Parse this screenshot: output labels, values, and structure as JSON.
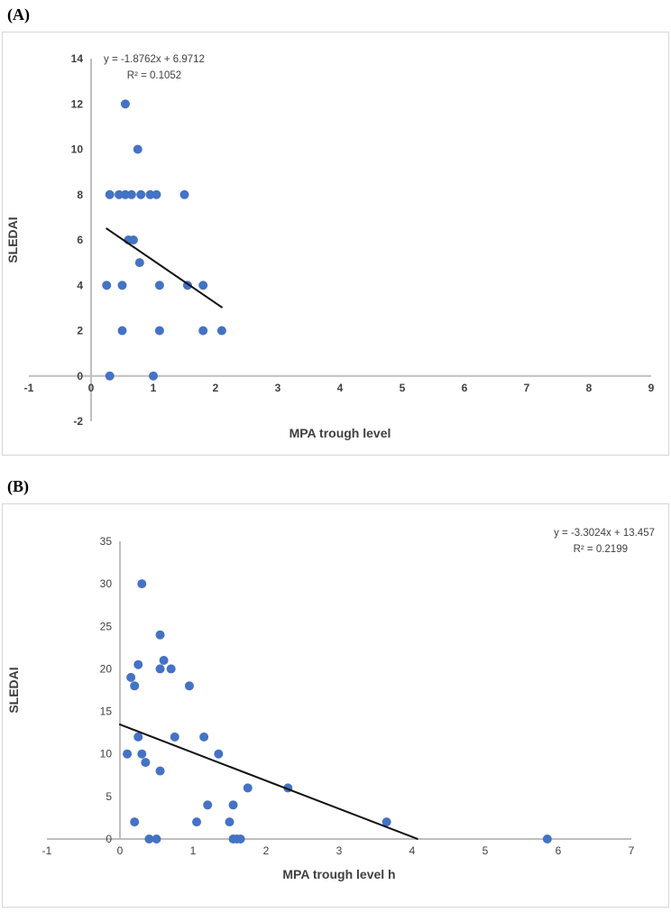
{
  "panels": [
    {
      "tag": "(A)"
    },
    {
      "tag": "(B)"
    }
  ],
  "chart_data": [
    {
      "type": "scatter",
      "equation": "y = -1.8762x + 6.9712",
      "r_squared": "R² = 0.1052",
      "xlabel": "MPA trough level",
      "ylabel": "SLEDAI",
      "xlim": [
        -1,
        9
      ],
      "ylim": [
        -2,
        14
      ],
      "xticks": [
        -1,
        0,
        1,
        2,
        3,
        4,
        5,
        6,
        7,
        8,
        9
      ],
      "yticks": [
        -2,
        0,
        2,
        4,
        6,
        8,
        10,
        12,
        14
      ],
      "points": [
        [
          0.55,
          12
        ],
        [
          0.75,
          10
        ],
        [
          0.3,
          8
        ],
        [
          0.45,
          8
        ],
        [
          0.55,
          8
        ],
        [
          0.65,
          8
        ],
        [
          0.8,
          8
        ],
        [
          0.95,
          8
        ],
        [
          1.05,
          8
        ],
        [
          1.5,
          8
        ],
        [
          0.6,
          6
        ],
        [
          0.68,
          6
        ],
        [
          0.78,
          5
        ],
        [
          0.25,
          4
        ],
        [
          0.5,
          4
        ],
        [
          1.1,
          4
        ],
        [
          1.55,
          4
        ],
        [
          1.8,
          4
        ],
        [
          0.5,
          2
        ],
        [
          1.1,
          2
        ],
        [
          1.8,
          2
        ],
        [
          2.1,
          2
        ],
        [
          0.3,
          0
        ],
        [
          1.0,
          0
        ]
      ],
      "trendline": {
        "slope": -1.8762,
        "intercept": 6.9712,
        "x_start": 0.25,
        "x_end": 2.1
      },
      "point_color": "#4472C4",
      "trend_color": "#111111",
      "axis_color": "#BFBFBF",
      "text_color": "#3F3F3F",
      "tick_bold": true,
      "equation_position": "top-left",
      "grid": false,
      "legend": "none"
    },
    {
      "type": "scatter",
      "equation": "y = -3.3024x + 13.457",
      "r_squared": "R² = 0.2199",
      "xlabel": "MPA trough level h",
      "ylabel": "SLEDAI",
      "xlim": [
        -1,
        7
      ],
      "ylim": [
        0,
        35
      ],
      "xticks": [
        -1,
        0,
        1,
        2,
        3,
        4,
        5,
        6,
        7
      ],
      "yticks": [
        0,
        5,
        10,
        15,
        20,
        25,
        30,
        35
      ],
      "points": [
        [
          0.3,
          30
        ],
        [
          0.55,
          24
        ],
        [
          0.6,
          21
        ],
        [
          0.25,
          20.5
        ],
        [
          0.55,
          20
        ],
        [
          0.7,
          20
        ],
        [
          0.15,
          19
        ],
        [
          0.2,
          18
        ],
        [
          0.95,
          18
        ],
        [
          0.25,
          12
        ],
        [
          0.75,
          12
        ],
        [
          1.15,
          12
        ],
        [
          0.1,
          10
        ],
        [
          0.3,
          10
        ],
        [
          1.35,
          10
        ],
        [
          0.35,
          9
        ],
        [
          0.55,
          8
        ],
        [
          1.75,
          6
        ],
        [
          2.3,
          6
        ],
        [
          1.2,
          4
        ],
        [
          1.55,
          4
        ],
        [
          0.2,
          2
        ],
        [
          1.05,
          2
        ],
        [
          1.5,
          2
        ],
        [
          3.65,
          2
        ],
        [
          0.4,
          0
        ],
        [
          0.5,
          0
        ],
        [
          1.55,
          0
        ],
        [
          1.6,
          0
        ],
        [
          1.65,
          0
        ],
        [
          5.85,
          0
        ]
      ],
      "trendline": {
        "slope": -3.3024,
        "intercept": 13.457,
        "x_start": 0.0,
        "x_end": 4.07
      },
      "point_color": "#4472C4",
      "trend_color": "#111111",
      "axis_color": "#BFBFBF",
      "text_color": "#3F3F3F",
      "tick_bold": false,
      "equation_position": "top-right",
      "grid": false,
      "legend": "none"
    }
  ]
}
